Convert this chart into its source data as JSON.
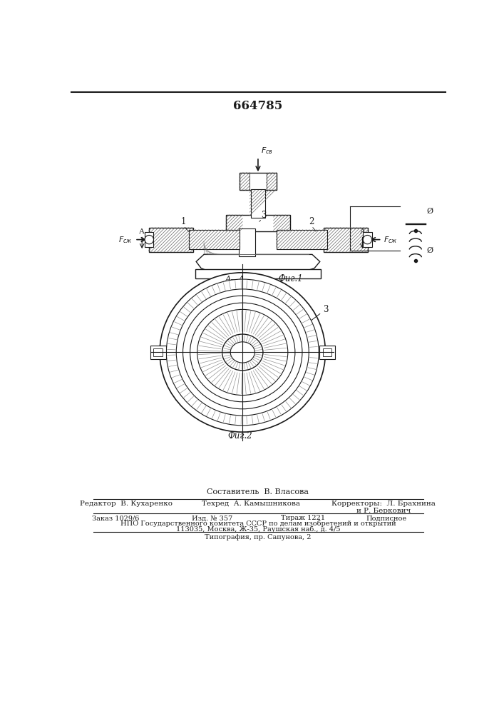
{
  "patent_number": "664785",
  "bg_color": "#ffffff",
  "footer_texts": {
    "compiler": "Составитель  В. Власова",
    "editor": "Редактор  В. Кухаренко",
    "techred": "Техред  А. Камышникова",
    "correctors": "Корректоры:  Л. Брахнина",
    "correctors2": "и Р. Беркович",
    "order": "Заказ 1029/6",
    "edition": "Изд. № 357",
    "tirazh": "Тираж 1221",
    "podpisnoe": "Подписное",
    "npo": "НПО Государственного комитета СССР по делам изобретений и открытий",
    "address": "113035, Москва, Ж-35, Раушская наб., д. 4/5",
    "tipography": "Типография, пр. Сапунова, 2"
  },
  "fig1_caption": "Фиг.1",
  "fig2_caption": "Фиг.2"
}
